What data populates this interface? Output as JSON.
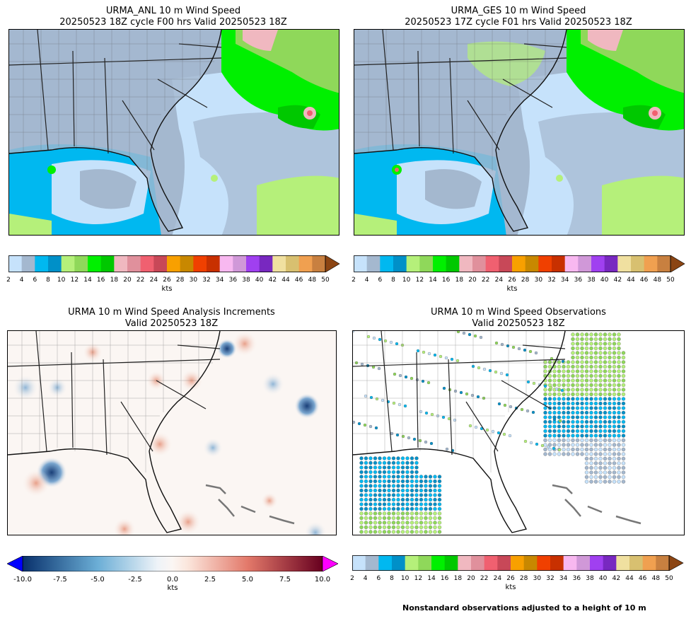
{
  "panels": [
    {
      "title_line1": "URMA_ANL 10 m Wind Speed",
      "title_line2": "20250523 18Z cycle F00 hrs Valid 20250523 18Z"
    },
    {
      "title_line1": "URMA_GES 10 m Wind Speed",
      "title_line2": "20250523 17Z cycle F01 hrs Valid 20250523 18Z"
    },
    {
      "title_line1": "URMA 10 m Wind Speed Analysis Increments",
      "title_line2": "Valid 20250523 18Z"
    },
    {
      "title_line1": "URMA 10 m Wind Speed Observations",
      "title_line2": "Valid 20250523 18Z"
    }
  ],
  "wind_colorbar": {
    "unit": "kts",
    "ticks": [
      "2",
      "4",
      "6",
      "8",
      "10",
      "12",
      "14",
      "16",
      "18",
      "20",
      "22",
      "24",
      "26",
      "28",
      "30",
      "32",
      "34",
      "36",
      "38",
      "40",
      "42",
      "44",
      "46",
      "48",
      "50"
    ],
    "colors": [
      "#c6e2fb",
      "#a4b8cf",
      "#00b8f0",
      "#0090c8",
      "#b5f07a",
      "#8fd85a",
      "#00f000",
      "#00c800",
      "#f0b8c0",
      "#e0909c",
      "#f06070",
      "#c84858",
      "#f8a000",
      "#c88800",
      "#f04000",
      "#c83000",
      "#f8b8f0",
      "#d098d8",
      "#a040f0",
      "#7828c0",
      "#f0e0a0",
      "#d8c070",
      "#f0a050",
      "#c88040"
    ],
    "extend_color": "#8b4513"
  },
  "increment_colorbar": {
    "unit": "kts",
    "ticks": [
      "-10.0",
      "-7.5",
      "-5.0",
      "-2.5",
      "0.0",
      "2.5",
      "5.0",
      "7.5",
      "10.0"
    ],
    "min_color": "#0000ff",
    "max_color": "#ff00ff"
  },
  "footnote": "Nonstandard observations adjusted to a height of 10 m"
}
